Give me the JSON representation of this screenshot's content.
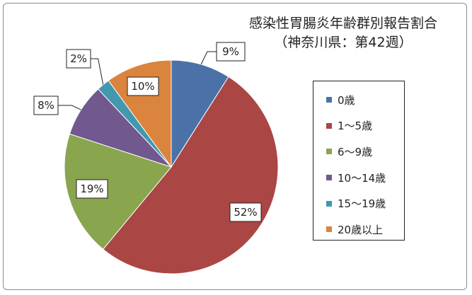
{
  "chart_data": {
    "type": "pie",
    "title": "感染性胃腸炎年齢群別報告割合",
    "subtitle": "（神奈川県：第42週）",
    "categories": [
      "0歳",
      "1～5歳",
      "6～9歳",
      "10～14歳",
      "15～19歳",
      "20歳以上"
    ],
    "values": [
      9,
      52,
      19,
      8,
      2,
      10
    ],
    "labels": [
      "9%",
      "52%",
      "19%",
      "8%",
      "2%",
      "10%"
    ],
    "colors": [
      "#4a72a8",
      "#aa4644",
      "#89a54e",
      "#71588f",
      "#4198af",
      "#db843d"
    ],
    "legend": "right"
  }
}
